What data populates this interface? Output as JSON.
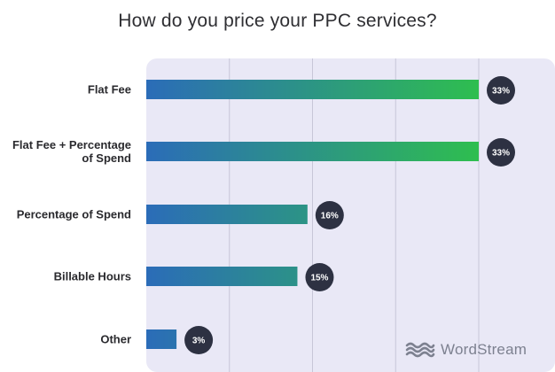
{
  "chart_data": {
    "type": "bar",
    "orientation": "horizontal",
    "title": "How do you price your PPC services?",
    "categories": [
      "Flat Fee",
      "Flat Fee + Percentage of Spend",
      "Percentage of Spend",
      "Billable Hours",
      "Other"
    ],
    "category_lines": [
      [
        "Flat Fee"
      ],
      [
        "Flat Fee + Percentage",
        "of Spend"
      ],
      [
        "Percentage of Spend"
      ],
      [
        "Billable Hours"
      ],
      [
        "Other"
      ]
    ],
    "values": [
      33,
      33,
      16,
      15,
      3
    ],
    "value_labels": [
      "33%",
      "33%",
      "16%",
      "15%",
      "3%"
    ],
    "xlim": [
      0,
      40
    ],
    "grid": "vertical",
    "colors": {
      "bar_start": "#2b6cb8",
      "bar_end": "#2ebe4f",
      "badge": "#2d3142",
      "panel": "#e9e8f6",
      "grid": "#c7c6d8"
    }
  },
  "brand": {
    "name": "WordStream",
    "icon": "wave-logo-icon"
  }
}
